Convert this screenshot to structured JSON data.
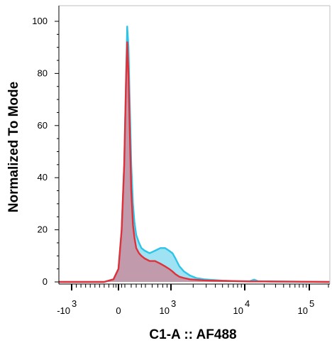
{
  "chart_data": {
    "type": "area",
    "xlabel": "C1-A :: AF488",
    "ylabel": "Normalized To Mode",
    "x_scale": "biexponential",
    "x_tick_labels": [
      {
        "base": "-10",
        "exp": "3",
        "value": -1000
      },
      {
        "base": "0",
        "exp": "",
        "value": 0
      },
      {
        "base": "10",
        "exp": "3",
        "value": 1000
      },
      {
        "base": "10",
        "exp": "4",
        "value": 10000
      },
      {
        "base": "10",
        "exp": "5",
        "value": 100000
      }
    ],
    "y_ticks": [
      0,
      20,
      40,
      60,
      80,
      100
    ],
    "ylim": [
      0,
      100
    ],
    "grid": false,
    "legend": "none",
    "series": [
      {
        "color": "#2ec4e8",
        "fill": "#7fd8f0",
        "x": [
          -300,
          -100,
          0,
          50,
          90,
          120,
          140,
          160,
          180,
          200,
          230,
          260,
          300,
          350,
          400,
          480,
          560,
          650,
          750,
          850,
          950,
          1050,
          1150,
          1300,
          1500,
          1800,
          2200,
          2800,
          3500,
          5000,
          8000,
          12000,
          14000,
          16000,
          20000,
          50000,
          200000
        ],
        "values": [
          0,
          1,
          5,
          20,
          45,
          80,
          98,
          90,
          65,
          45,
          30,
          23,
          18,
          15,
          13,
          12,
          11,
          12,
          13,
          13,
          12,
          11,
          9,
          6,
          4,
          2.5,
          1.5,
          1.0,
          0.8,
          0.5,
          0.3,
          0.3,
          0.9,
          0.3,
          0.2,
          0.1,
          0
        ]
      },
      {
        "color": "#e0303a",
        "fill": "#c98a9a",
        "x": [
          -300,
          -100,
          0,
          50,
          90,
          120,
          140,
          160,
          180,
          200,
          230,
          260,
          300,
          350,
          400,
          480,
          560,
          650,
          750,
          850,
          950,
          1050,
          1150,
          1300,
          1500,
          1800,
          2200,
          2800,
          3500,
          5000,
          8000,
          12000,
          20000,
          50000,
          200000
        ],
        "values": [
          0,
          1,
          5,
          20,
          45,
          78,
          92,
          80,
          55,
          35,
          22,
          17,
          13,
          11,
          10,
          9,
          8,
          8,
          7,
          6,
          5,
          4,
          3,
          2,
          1.5,
          1,
          0.8,
          0.6,
          0.5,
          0.4,
          0.3,
          0.2,
          0.2,
          0.1,
          0
        ]
      }
    ]
  }
}
